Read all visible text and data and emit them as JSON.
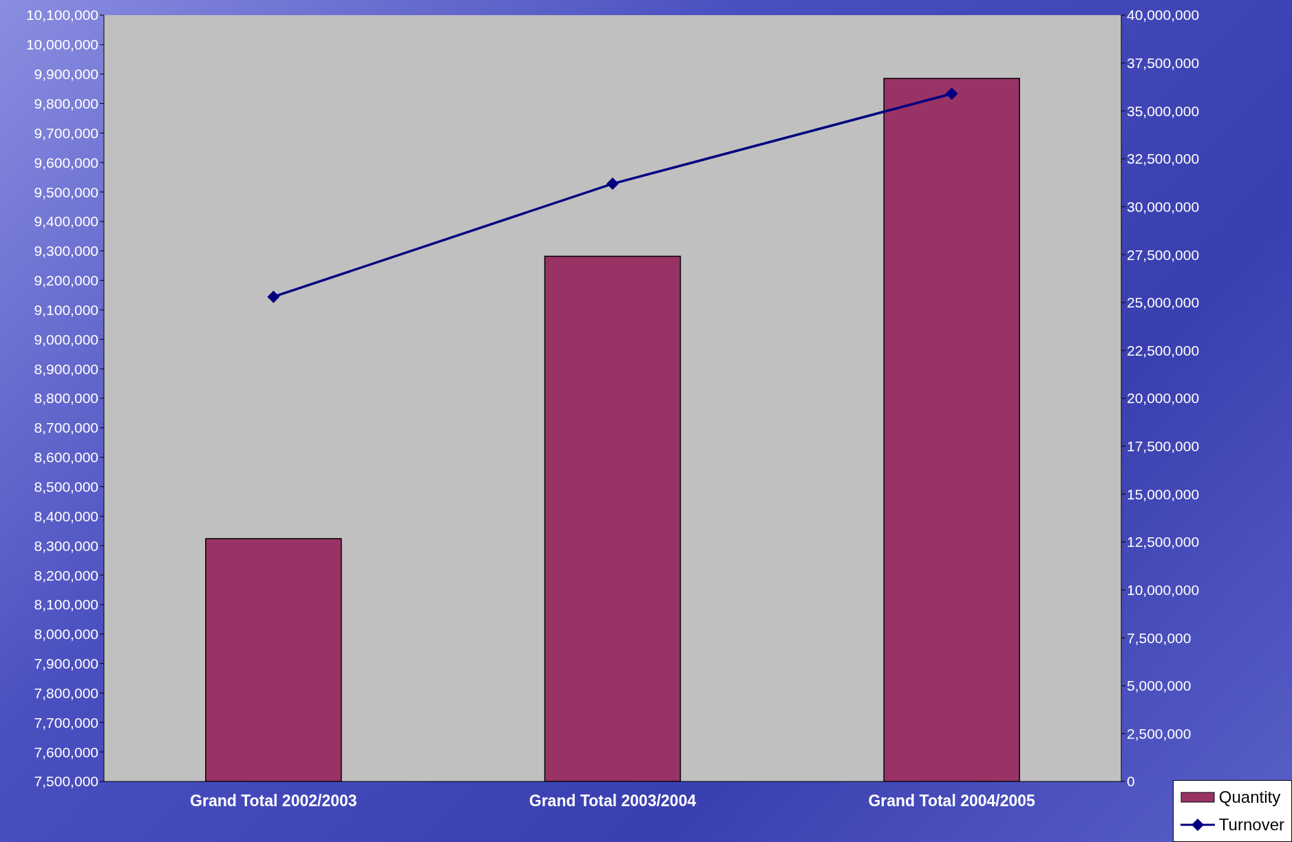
{
  "chart_data": {
    "type": "bar",
    "categories": [
      "Grand Total 2002/2003",
      "Grand Total 2003/2004",
      "Grand Total 2004/2005"
    ],
    "series": [
      {
        "name": "Quantity",
        "color": "#993366",
        "values": [
          8324000,
          9282000,
          9885000
        ]
      },
      {
        "name": "Turnover",
        "type": "line",
        "axis": "y2",
        "color": "#000080",
        "values": [
          25300000,
          31200000,
          35900000
        ]
      }
    ],
    "ylim": [
      7500000,
      10100000
    ],
    "yticks": [
      {
        "value": 7500000,
        "label": "7,500,000"
      },
      {
        "value": 7600000,
        "label": "7,600,000"
      },
      {
        "value": 7700000,
        "label": "7,700,000"
      },
      {
        "value": 7800000,
        "label": "7,800,000"
      },
      {
        "value": 7900000,
        "label": "7,900,000"
      },
      {
        "value": 8000000,
        "label": "8,000,000"
      },
      {
        "value": 8100000,
        "label": "8,100,000"
      },
      {
        "value": 8200000,
        "label": "8,200,000"
      },
      {
        "value": 8300000,
        "label": "8,300,000"
      },
      {
        "value": 8400000,
        "label": "8,400,000"
      },
      {
        "value": 8500000,
        "label": "8,500,000"
      },
      {
        "value": 8600000,
        "label": "8,600,000"
      },
      {
        "value": 8700000,
        "label": "8,700,000"
      },
      {
        "value": 8800000,
        "label": "8,800,000"
      },
      {
        "value": 8900000,
        "label": "8,900,000"
      },
      {
        "value": 9000000,
        "label": "9,000,000"
      },
      {
        "value": 9100000,
        "label": "9,100,000"
      },
      {
        "value": 9200000,
        "label": "9,200,000"
      },
      {
        "value": 9300000,
        "label": "9,300,000"
      },
      {
        "value": 9400000,
        "label": "9,400,000"
      },
      {
        "value": 9500000,
        "label": "9,500,000"
      },
      {
        "value": 9600000,
        "label": "9,600,000"
      },
      {
        "value": 9700000,
        "label": "9,700,000"
      },
      {
        "value": 9800000,
        "label": "9,800,000"
      },
      {
        "value": 9900000,
        "label": "9,900,000"
      },
      {
        "value": 10000000,
        "label": "10,000,000"
      },
      {
        "value": 10100000,
        "label": "10,100,000"
      }
    ],
    "y2lim": [
      0,
      40000000
    ],
    "y2ticks": [
      0,
      {
        "value": 2500000,
        "label": "2,500,000"
      },
      {
        "value": 5000000,
        "label": "5,000,000"
      },
      {
        "value": 7500000,
        "label": "7,500,000"
      },
      {
        "value": 10000000,
        "label": "10,000,000"
      },
      {
        "value": 12500000,
        "label": "12,500,000"
      },
      {
        "value": 15000000,
        "label": "15,000,000"
      },
      {
        "value": 17500000,
        "label": "17,500,000"
      },
      {
        "value": 20000000,
        "label": "20,000,000"
      },
      {
        "value": 22500000,
        "label": "22,500,000"
      },
      {
        "value": 25000000,
        "label": "25,000,000"
      },
      {
        "value": 27500000,
        "label": "27,500,000"
      },
      {
        "value": 30000000,
        "label": "30,000,000"
      },
      {
        "value": 32500000,
        "label": "32,500,000"
      },
      {
        "value": 35000000,
        "label": "35,000,000"
      },
      {
        "value": 37500000,
        "label": "37,500,000"
      },
      {
        "value": 40000000,
        "label": "40,000,000"
      }
    ],
    "marker": "diamond",
    "line_style": "solid",
    "legend": "bottom right",
    "grid": false
  }
}
